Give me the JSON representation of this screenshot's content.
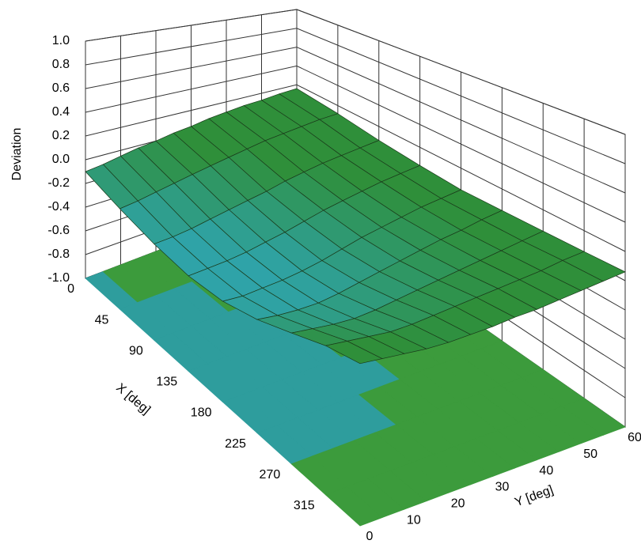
{
  "chart_data": {
    "type": "surface",
    "xlabel": "X [deg]",
    "ylabel": "Y [deg]",
    "zlabel": "Deviation",
    "x": [
      0,
      45,
      90,
      135,
      180,
      225,
      270,
      315,
      360
    ],
    "y": [
      0,
      5,
      10,
      15,
      20,
      25,
      30,
      35,
      40,
      45,
      50,
      55,
      60
    ],
    "values": [
      [
        -0.1,
        -0.08,
        -0.05,
        -0.02,
        0.0,
        0.03,
        0.05,
        0.08,
        0.1,
        0.12,
        0.13,
        0.15,
        0.16
      ],
      [
        -0.18,
        -0.16,
        -0.13,
        -0.1,
        -0.07,
        -0.04,
        -0.01,
        0.02,
        0.05,
        0.07,
        0.09,
        0.11,
        0.12
      ],
      [
        -0.24,
        -0.23,
        -0.21,
        -0.18,
        -0.15,
        -0.12,
        -0.09,
        -0.05,
        -0.02,
        0.01,
        0.03,
        0.05,
        0.07
      ],
      [
        -0.27,
        -0.26,
        -0.25,
        -0.23,
        -0.2,
        -0.17,
        -0.13,
        -0.09,
        -0.06,
        -0.03,
        0.0,
        0.02,
        0.04
      ],
      [
        -0.25,
        -0.26,
        -0.25,
        -0.24,
        -0.22,
        -0.19,
        -0.15,
        -0.11,
        -0.08,
        -0.05,
        -0.02,
        0.0,
        0.02
      ],
      [
        -0.18,
        -0.2,
        -0.21,
        -0.21,
        -0.19,
        -0.16,
        -0.13,
        -0.1,
        -0.07,
        -0.04,
        -0.02,
        0.01,
        0.03
      ],
      [
        -0.08,
        -0.1,
        -0.12,
        -0.13,
        -0.12,
        -0.1,
        -0.08,
        -0.06,
        -0.04,
        -0.02,
        0.0,
        0.02,
        0.04
      ],
      [
        0.02,
        0.0,
        -0.02,
        -0.04,
        -0.04,
        -0.03,
        -0.02,
        -0.01,
        0.0,
        0.01,
        0.02,
        0.04,
        0.05
      ],
      [
        0.08,
        0.06,
        0.04,
        0.02,
        0.01,
        0.01,
        0.01,
        0.02,
        0.02,
        0.03,
        0.04,
        0.05,
        0.06
      ]
    ],
    "colors": {
      "low": "#2fa3a8",
      "high": "#2f8f3a",
      "floor_low": "#2e9d9d",
      "floor_high": "#3c9b3c"
    },
    "threshold": -0.12,
    "xlim": [
      0,
      360
    ],
    "xticks": [
      0,
      45,
      90,
      135,
      180,
      225,
      270,
      315
    ],
    "ylim": [
      0,
      60
    ],
    "yticks": [
      0,
      10,
      20,
      30,
      40,
      50,
      60
    ],
    "zlim": [
      -1,
      1
    ],
    "zticks": [
      {
        "value": 1,
        "label": "1.0"
      },
      0.8,
      0.6,
      0.4,
      0.2,
      {
        "value": 0,
        "label": "0.0"
      },
      -0.2,
      -0.4,
      -0.6,
      -0.8,
      {
        "value": -1,
        "label": "-1.0"
      }
    ],
    "grid": true
  }
}
